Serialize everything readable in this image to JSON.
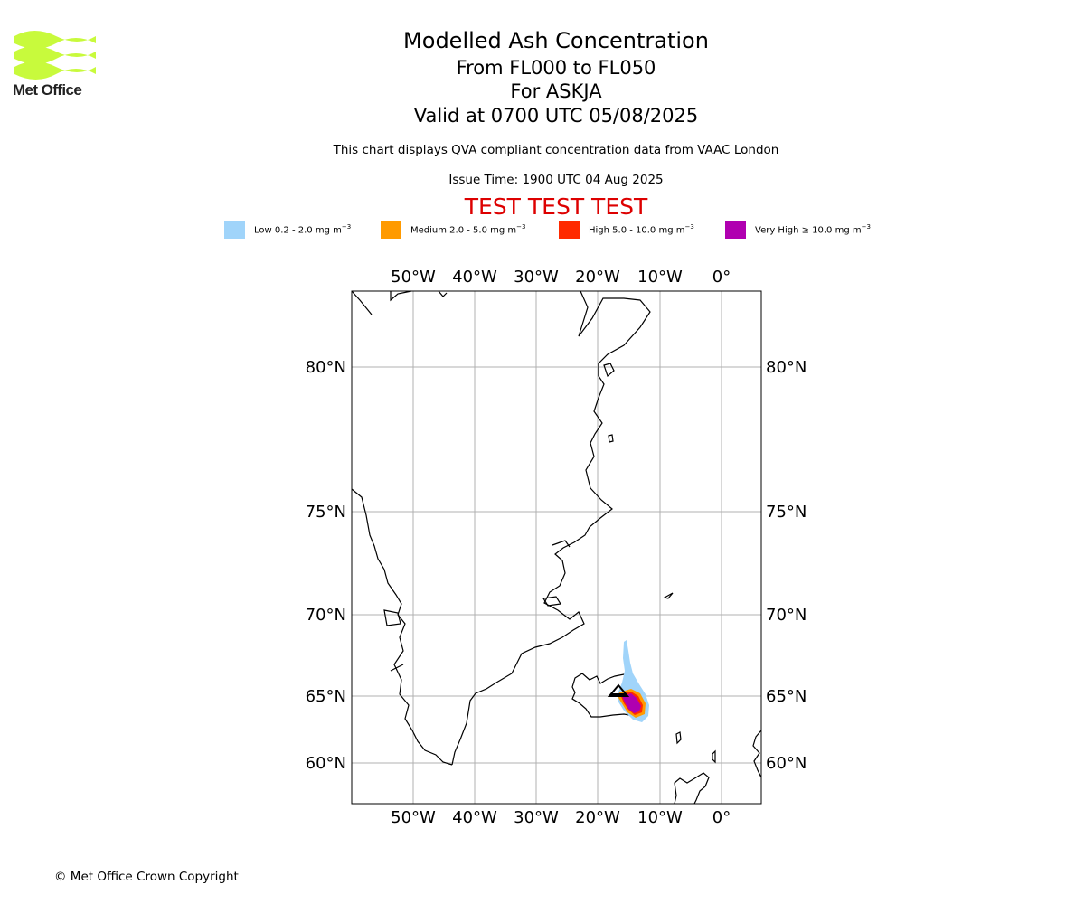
{
  "logo": {
    "text": "Met Office",
    "color": "#c8fa3c"
  },
  "title": "Modelled Ash Concentration",
  "subtitle_levels": "From FL000 to FL050",
  "subtitle_volcano": "For ASKJA",
  "subtitle_valid": "Valid at 0700 UTC 05/08/2025",
  "note": "This chart displays QVA compliant concentration data from VAAC London",
  "issue_time": "Issue Time: 1900 UTC 04 Aug 2025",
  "test_banner": "TEST TEST TEST",
  "test_color": "#dd0000",
  "legend": [
    {
      "label": "Low 0.2 - 2.0 mg m",
      "color": "#a0d4fa"
    },
    {
      "label": "Medium 2.0 - 5.0 mg m",
      "color": "#ff9a00"
    },
    {
      "label": "High 5.0 - 10.0 mg m",
      "color": "#ff2a00"
    },
    {
      "label": "Very High  ≥  10.0 mg m",
      "color": "#b000b0"
    }
  ],
  "legend_unit_exponent": "−3",
  "map": {
    "lon_ticks": [
      "50°W",
      "40°W",
      "30°W",
      "20°W",
      "10°W",
      "0°"
    ],
    "lat_ticks": [
      "80°N",
      "75°N",
      "70°N",
      "65°N",
      "60°N"
    ],
    "volcano_marker": "triangle-icon"
  },
  "copyright": "© Met Office Crown Copyright"
}
